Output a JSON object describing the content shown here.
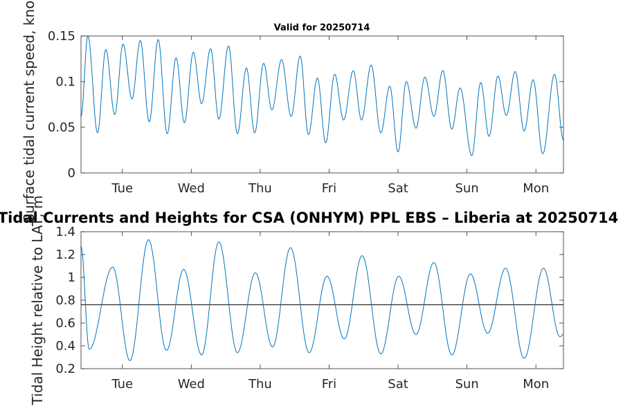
{
  "figure": {
    "top_title": "Valid for 20250714",
    "main_title": "Tidal Currents and Heights for CSA (ONHYM) PPL EBS  – Liberia at 20250714",
    "colors": {
      "line": "#0072BD",
      "axis": "#262626",
      "reference": "#000000",
      "background": "#ffffff"
    }
  },
  "chart_data": [
    {
      "type": "line",
      "title": "",
      "xlabel": "",
      "ylabel": "Surface tidal current speed, knots",
      "xlim": [
        0,
        7.0
      ],
      "ylim": [
        0,
        0.15
      ],
      "yticks": [
        "0",
        "0.05",
        "0.1",
        "0.15"
      ],
      "xtick_positions_days": [
        0.6,
        1.6,
        2.6,
        3.6,
        4.6,
        5.6,
        6.6
      ],
      "xtick_labels": [
        "Tue",
        "Wed",
        "Thu",
        "Fri",
        "Sat",
        "Sun",
        "Mon"
      ],
      "series": [
        {
          "extrema": [
            [
              0.0,
              0.062
            ],
            [
              0.1,
              0.15
            ],
            [
              0.24,
              0.044
            ],
            [
              0.36,
              0.135
            ],
            [
              0.49,
              0.064
            ],
            [
              0.61,
              0.141
            ],
            [
              0.74,
              0.081
            ],
            [
              0.86,
              0.145
            ],
            [
              0.99,
              0.056
            ],
            [
              1.12,
              0.146
            ],
            [
              1.25,
              0.043
            ],
            [
              1.38,
              0.126
            ],
            [
              1.5,
              0.055
            ],
            [
              1.63,
              0.132
            ],
            [
              1.75,
              0.076
            ],
            [
              1.88,
              0.136
            ],
            [
              2.0,
              0.059
            ],
            [
              2.14,
              0.139
            ],
            [
              2.27,
              0.043
            ],
            [
              2.4,
              0.115
            ],
            [
              2.52,
              0.044
            ],
            [
              2.65,
              0.12
            ],
            [
              2.77,
              0.069
            ],
            [
              2.91,
              0.124
            ],
            [
              3.05,
              0.062
            ],
            [
              3.18,
              0.128
            ],
            [
              3.3,
              0.042
            ],
            [
              3.43,
              0.104
            ],
            [
              3.55,
              0.033
            ],
            [
              3.68,
              0.108
            ],
            [
              3.81,
              0.058
            ],
            [
              3.95,
              0.112
            ],
            [
              4.07,
              0.058
            ],
            [
              4.21,
              0.118
            ],
            [
              4.35,
              0.044
            ],
            [
              4.48,
              0.095
            ],
            [
              4.6,
              0.023
            ],
            [
              4.72,
              0.1
            ],
            [
              4.86,
              0.049
            ],
            [
              4.99,
              0.105
            ],
            [
              5.12,
              0.062
            ],
            [
              5.25,
              0.112
            ],
            [
              5.38,
              0.048
            ],
            [
              5.5,
              0.093
            ],
            [
              5.67,
              0.019
            ],
            [
              5.8,
              0.099
            ],
            [
              5.92,
              0.04
            ],
            [
              6.05,
              0.106
            ],
            [
              6.17,
              0.063
            ],
            [
              6.3,
              0.111
            ],
            [
              6.43,
              0.046
            ],
            [
              6.56,
              0.102
            ],
            [
              6.7,
              0.021
            ],
            [
              6.87,
              0.108
            ],
            [
              7.0,
              0.036
            ]
          ]
        }
      ]
    },
    {
      "type": "line",
      "title": "",
      "xlabel": "",
      "ylabel": "Tidal Height relative to LAT, m",
      "xlim": [
        0,
        7.0
      ],
      "ylim": [
        0.2,
        1.4
      ],
      "yticks": [
        "0.2",
        "0.4",
        "0.6",
        "0.8",
        "1",
        "1.2",
        "1.4"
      ],
      "reference_line": 0.76,
      "xtick_positions_days": [
        0.6,
        1.6,
        2.6,
        3.6,
        4.6,
        5.6,
        6.6
      ],
      "xtick_labels": [
        "Tue",
        "Wed",
        "Thu",
        "Fri",
        "Sat",
        "Sun",
        "Mon"
      ],
      "series": [
        {
          "extrema": [
            [
              0.0,
              1.27
            ],
            [
              0.12,
              0.37
            ],
            [
              0.46,
              1.09
            ],
            [
              0.71,
              0.27
            ],
            [
              0.98,
              1.33
            ],
            [
              1.24,
              0.36
            ],
            [
              1.49,
              1.07
            ],
            [
              1.75,
              0.32
            ],
            [
              2.0,
              1.31
            ],
            [
              2.27,
              0.34
            ],
            [
              2.53,
              1.04
            ],
            [
              2.78,
              0.39
            ],
            [
              3.04,
              1.26
            ],
            [
              3.31,
              0.34
            ],
            [
              3.57,
              1.01
            ],
            [
              3.82,
              0.46
            ],
            [
              4.08,
              1.19
            ],
            [
              4.35,
              0.33
            ],
            [
              4.61,
              1.01
            ],
            [
              4.86,
              0.5
            ],
            [
              5.12,
              1.13
            ],
            [
              5.38,
              0.32
            ],
            [
              5.65,
              1.03
            ],
            [
              5.9,
              0.51
            ],
            [
              6.16,
              1.08
            ],
            [
              6.43,
              0.29
            ],
            [
              6.71,
              1.08
            ],
            [
              6.95,
              0.48
            ],
            [
              7.0,
              0.5
            ]
          ]
        }
      ]
    }
  ]
}
